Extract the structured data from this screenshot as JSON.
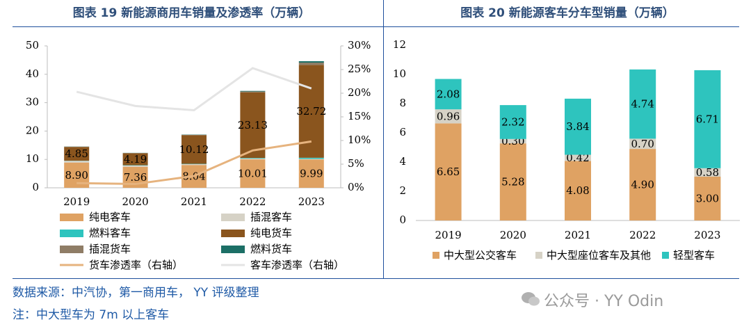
{
  "chart_data": [
    {
      "type": "bar",
      "stacked": true,
      "title": "图表 19 新能源商用车销量及渗透率（万辆）",
      "categories": [
        "2019",
        "2020",
        "2021",
        "2022",
        "2023"
      ],
      "yleft_range": [
        0,
        50
      ],
      "yleft_ticks": [
        "0",
        "10",
        "20",
        "30",
        "40",
        "50"
      ],
      "yright_range": [
        0,
        30
      ],
      "yright_ticks": [
        "0%",
        "5%",
        "10%",
        "15%",
        "20%",
        "25%",
        "30%"
      ],
      "series": [
        {
          "name": "纯电客车",
          "kind": "bar",
          "color": "#DFA263",
          "values": [
            8.9,
            7.36,
            8.04,
            10.01,
            9.99
          ],
          "labels": [
            "8.90",
            "7.36",
            "8.04",
            "10.01",
            "9.99"
          ]
        },
        {
          "name": "插混客车",
          "kind": "bar",
          "color": "#D6D2C6",
          "values": [
            0.6,
            0.5,
            0.3,
            0.3,
            0.2
          ]
        },
        {
          "name": "燃料客车",
          "kind": "bar",
          "color": "#2EC4BE",
          "values": [
            0.05,
            0.1,
            0.1,
            0.2,
            0.4
          ]
        },
        {
          "name": "纯电货车",
          "kind": "bar",
          "color": "#8A551E",
          "values": [
            4.85,
            4.19,
            10.12,
            23.13,
            32.72
          ],
          "labels": [
            "4.85",
            "4.19",
            "10.12",
            "23.13",
            "32.72"
          ]
        },
        {
          "name": "插混货车",
          "kind": "bar",
          "color": "#8F7D66",
          "values": [
            0.1,
            0.1,
            0.1,
            0.3,
            0.8
          ]
        },
        {
          "name": "燃料货车",
          "kind": "bar",
          "color": "#1C6F66",
          "values": [
            0.05,
            0.05,
            0.1,
            0.2,
            0.5
          ]
        },
        {
          "name": "货车渗透率（右轴）",
          "kind": "line",
          "axis": "right",
          "color": "#E6B37E",
          "values": [
            1.0,
            0.8,
            2.5,
            7.9,
            9.8
          ]
        },
        {
          "name": "客车渗透率（右轴）",
          "kind": "line",
          "axis": "right",
          "color": "#E4E4E4",
          "values": [
            20.3,
            17.3,
            16.4,
            25.3,
            21.0
          ]
        }
      ]
    },
    {
      "type": "bar",
      "stacked": true,
      "title": "图表 20 新能源客车分车型销量（万辆）",
      "categories": [
        "2019",
        "2020",
        "2021",
        "2022",
        "2023"
      ],
      "y_range": [
        0,
        12
      ],
      "y_ticks": [
        "0",
        "2",
        "4",
        "6",
        "8",
        "10",
        "12"
      ],
      "series": [
        {
          "name": "中大型公交客车",
          "color": "#DFA263",
          "values": [
            6.65,
            5.28,
            4.08,
            4.9,
            3.0
          ],
          "labels": [
            "6.65",
            "5.28",
            "4.08",
            "4.90",
            "3.00"
          ]
        },
        {
          "name": "中大型座位客车及其他",
          "color": "#D6D2C6",
          "values": [
            0.96,
            0.3,
            0.42,
            0.7,
            0.58
          ],
          "labels": [
            "0.96",
            "0.30",
            "0.42",
            "0.70",
            "0.58"
          ]
        },
        {
          "name": "轻型客车",
          "color": "#2EC4BE",
          "values": [
            2.08,
            2.32,
            3.84,
            4.74,
            6.71
          ],
          "labels": [
            "2.08",
            "2.32",
            "3.84",
            "4.74",
            "6.71"
          ]
        }
      ]
    }
  ],
  "notes": {
    "source": "数据来源：中汽协，第一商用车， YY 评级整理",
    "footnote": "注：中大型车为 7m 以上客车"
  },
  "watermark": "公众号 · YY Odin"
}
